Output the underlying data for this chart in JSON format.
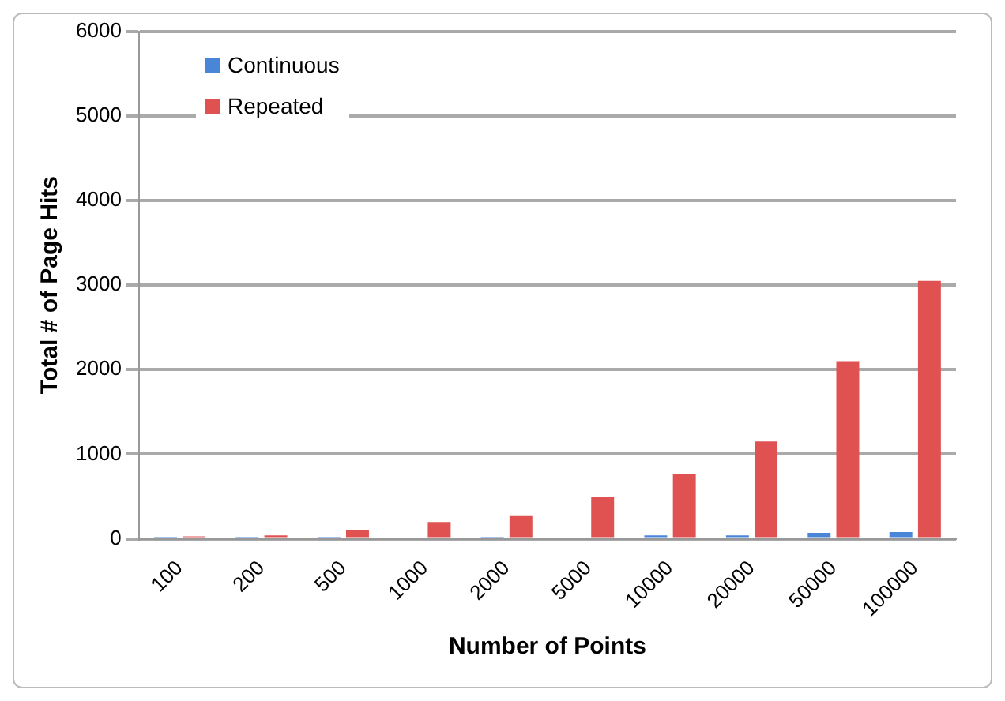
{
  "chart_data": {
    "type": "bar",
    "xlabel": "Number of Points",
    "ylabel": "Total # of Page Hits",
    "categories": [
      "100",
      "200",
      "500",
      "1000",
      "2000",
      "5000",
      "10000",
      "20000",
      "50000",
      "100000"
    ],
    "series": [
      {
        "name": "Continuous",
        "color": "#4a86d8",
        "values": [
          10,
          10,
          10,
          20,
          10,
          20,
          40,
          40,
          70,
          80
        ]
      },
      {
        "name": "Repeated",
        "color": "#e05252",
        "values": [
          30,
          40,
          100,
          200,
          270,
          500,
          770,
          1150,
          2100,
          3050
        ]
      }
    ],
    "ylim": [
      0,
      6000
    ],
    "yticks": [
      0,
      1000,
      2000,
      3000,
      4000,
      5000,
      6000
    ],
    "grid": "y",
    "legend": "top left"
  }
}
